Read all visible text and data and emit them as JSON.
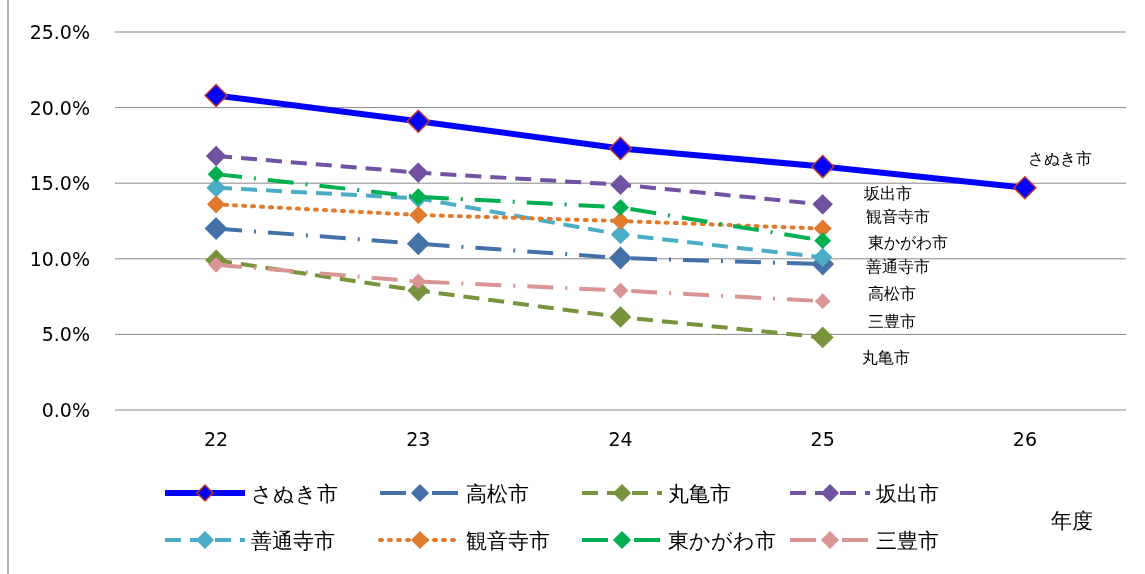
{
  "chart_data": {
    "type": "line",
    "xlabel": "年度",
    "categories": [
      "22",
      "23",
      "24",
      "25",
      "26"
    ],
    "ylim": [
      0,
      25
    ],
    "yticks": [
      {
        "value": 0,
        "label": "0.0%"
      },
      {
        "value": 5,
        "label": "5.0%"
      },
      {
        "value": 10,
        "label": "10.0%"
      },
      {
        "value": 15,
        "label": "15.0%"
      },
      {
        "value": 20,
        "label": "20.0%"
      },
      {
        "value": 25,
        "label": "25.0%"
      }
    ],
    "grid": "y",
    "legend": "bottom",
    "marker": "diamond",
    "series": [
      {
        "name": "さぬき市",
        "color": "#0000ff",
        "line_style": "solid",
        "values": [
          20.8,
          19.1,
          17.3,
          16.1,
          14.7
        ]
      },
      {
        "name": "高松市",
        "color": "#4472a8",
        "line_style": "dashdot",
        "values": [
          12.0,
          11.0,
          10.05,
          9.65,
          null
        ]
      },
      {
        "name": "丸亀市",
        "color": "#77933c",
        "line_style": "dashed",
        "values": [
          9.9,
          7.9,
          6.15,
          4.8,
          null
        ]
      },
      {
        "name": "坂出市",
        "color": "#7052a0",
        "line_style": "dashed",
        "values": [
          16.8,
          15.7,
          14.9,
          13.6,
          null
        ]
      },
      {
        "name": "善通寺市",
        "color": "#4bacc6",
        "line_style": "dashed",
        "values": [
          14.7,
          14.0,
          11.6,
          10.1,
          null
        ]
      },
      {
        "name": "観音寺市",
        "color": "#e07b2e",
        "line_style": "dotted",
        "values": [
          13.6,
          12.9,
          12.5,
          12.0,
          null
        ]
      },
      {
        "name": "東かがわ市",
        "color": "#00b050",
        "line_style": "dashdot",
        "values": [
          15.6,
          14.1,
          13.4,
          11.2,
          null
        ]
      },
      {
        "name": "三豊市",
        "color": "#d99594",
        "line_style": "dashdot",
        "values": [
          9.6,
          8.5,
          7.9,
          7.2,
          null
        ]
      }
    ],
    "annotations": [
      "さぬき市",
      "坂出市",
      "観音寺市",
      "東かがわ市",
      "善通寺市",
      "高松市",
      "三豊市",
      "丸亀市"
    ]
  }
}
